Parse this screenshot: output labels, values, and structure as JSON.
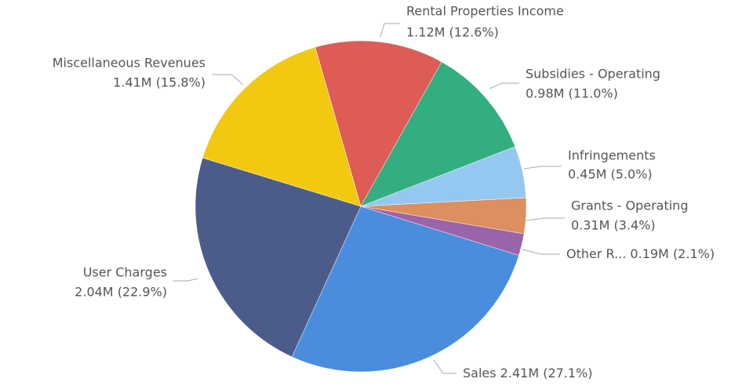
{
  "chart_data": {
    "type": "pie",
    "categories": [
      "Rental Properties Income",
      "Subsidies - Operating",
      "Infringements",
      "Grants - Operating",
      "Other R...",
      "Sales",
      "User Charges",
      "Miscellaneous Revenues"
    ],
    "values": [
      1.12,
      0.98,
      0.45,
      0.31,
      0.19,
      2.41,
      2.04,
      1.41
    ],
    "value_labels": [
      "1.12M (12.6%)",
      "0.98M (11.0%)",
      "0.45M (5.0%)",
      "0.31M (3.4%)",
      "0.19M (2.1%)",
      "2.41M (27.1%)",
      "2.04M (22.9%)",
      "1.41M (15.8%)"
    ],
    "colors": [
      "#dd5c55",
      "#33ae81",
      "#95c8f0",
      "#dc8f5f",
      "#9b63a8",
      "#4a8ddc",
      "#4c5c8a",
      "#f2c811"
    ]
  }
}
